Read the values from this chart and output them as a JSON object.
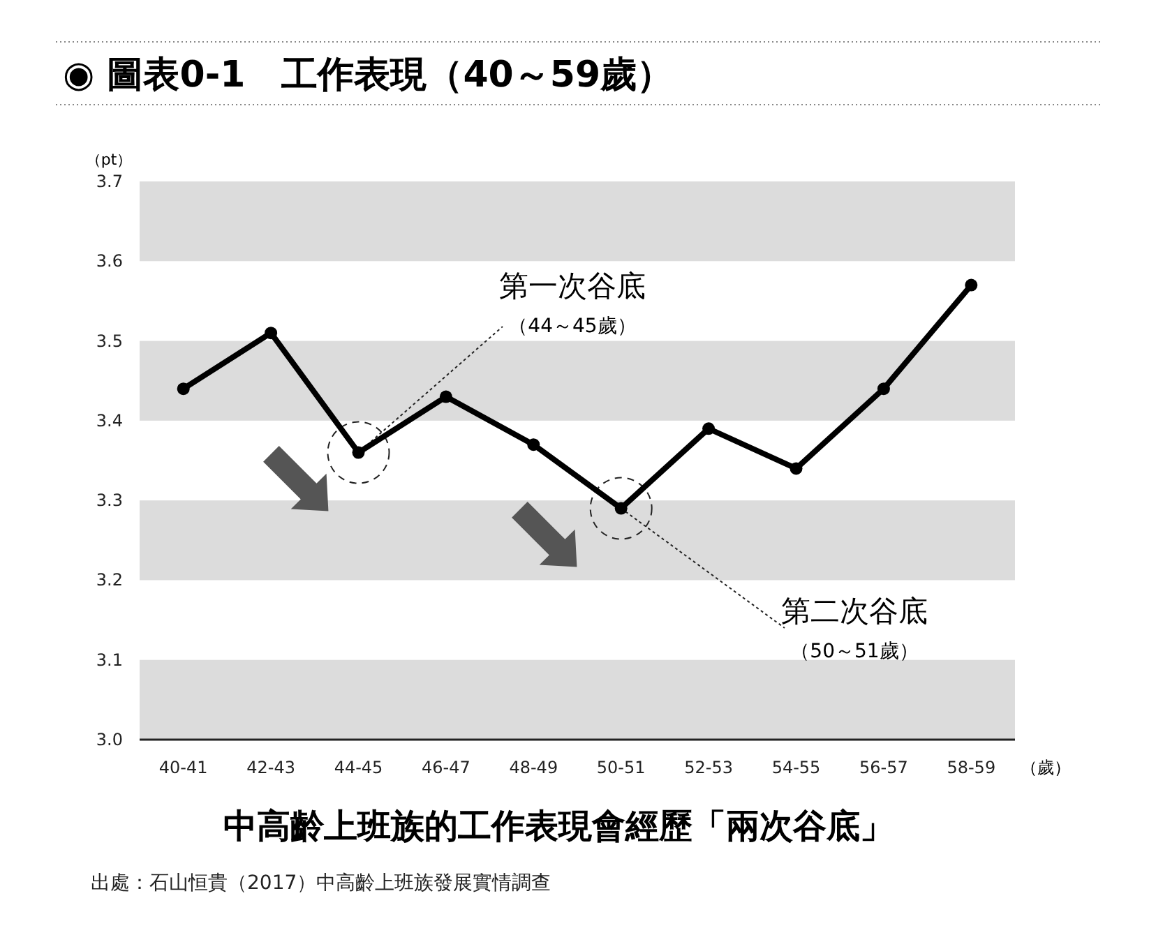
{
  "chart_data": {
    "type": "line",
    "title": "◉ 圖表0-1　工作表現（40～59歲）",
    "subtitle": "中高齡上班族的工作表現會經歷「兩次谷底」",
    "ylabel": "（pt）",
    "xlabel": "（歲）",
    "categories": [
      "40-41",
      "42-43",
      "44-45",
      "46-47",
      "48-49",
      "50-51",
      "52-53",
      "54-55",
      "56-57",
      "58-59"
    ],
    "series": [
      {
        "color": "#000000",
        "values": [
          3.44,
          3.51,
          3.36,
          3.43,
          3.37,
          3.29,
          3.39,
          3.34,
          3.44,
          3.57
        ]
      }
    ],
    "marker": "circle",
    "line_style": "solid",
    "ylim": [
      3.0,
      3.7
    ],
    "yticks": [
      {
        "value": 3.0,
        "label": "3.0"
      },
      3.1,
      3.2,
      3.3,
      3.4,
      3.5,
      3.6,
      3.7
    ],
    "bands": [
      {
        "axis": "y",
        "from": 3.0,
        "to": 3.1,
        "color": "#dcdcdc"
      },
      {
        "axis": "y",
        "from": 3.2,
        "to": 3.3,
        "color": "#dcdcdc"
      },
      {
        "axis": "y",
        "from": 3.4,
        "to": 3.5,
        "color": "#dcdcdc"
      },
      {
        "axis": "y",
        "from": 3.6,
        "to": 3.7,
        "color": "#dcdcdc"
      }
    ],
    "annotations": [
      {
        "text": "第一次谷底",
        "x": "44-45",
        "y": 3.36
      },
      "（44～45歲）",
      {
        "text": "第二次谷底",
        "x": "50-51",
        "y": 3.29
      },
      "（50～51歲）",
      "出處：石山恒貴（2017）中高齡上班族發展實情調查"
    ]
  }
}
